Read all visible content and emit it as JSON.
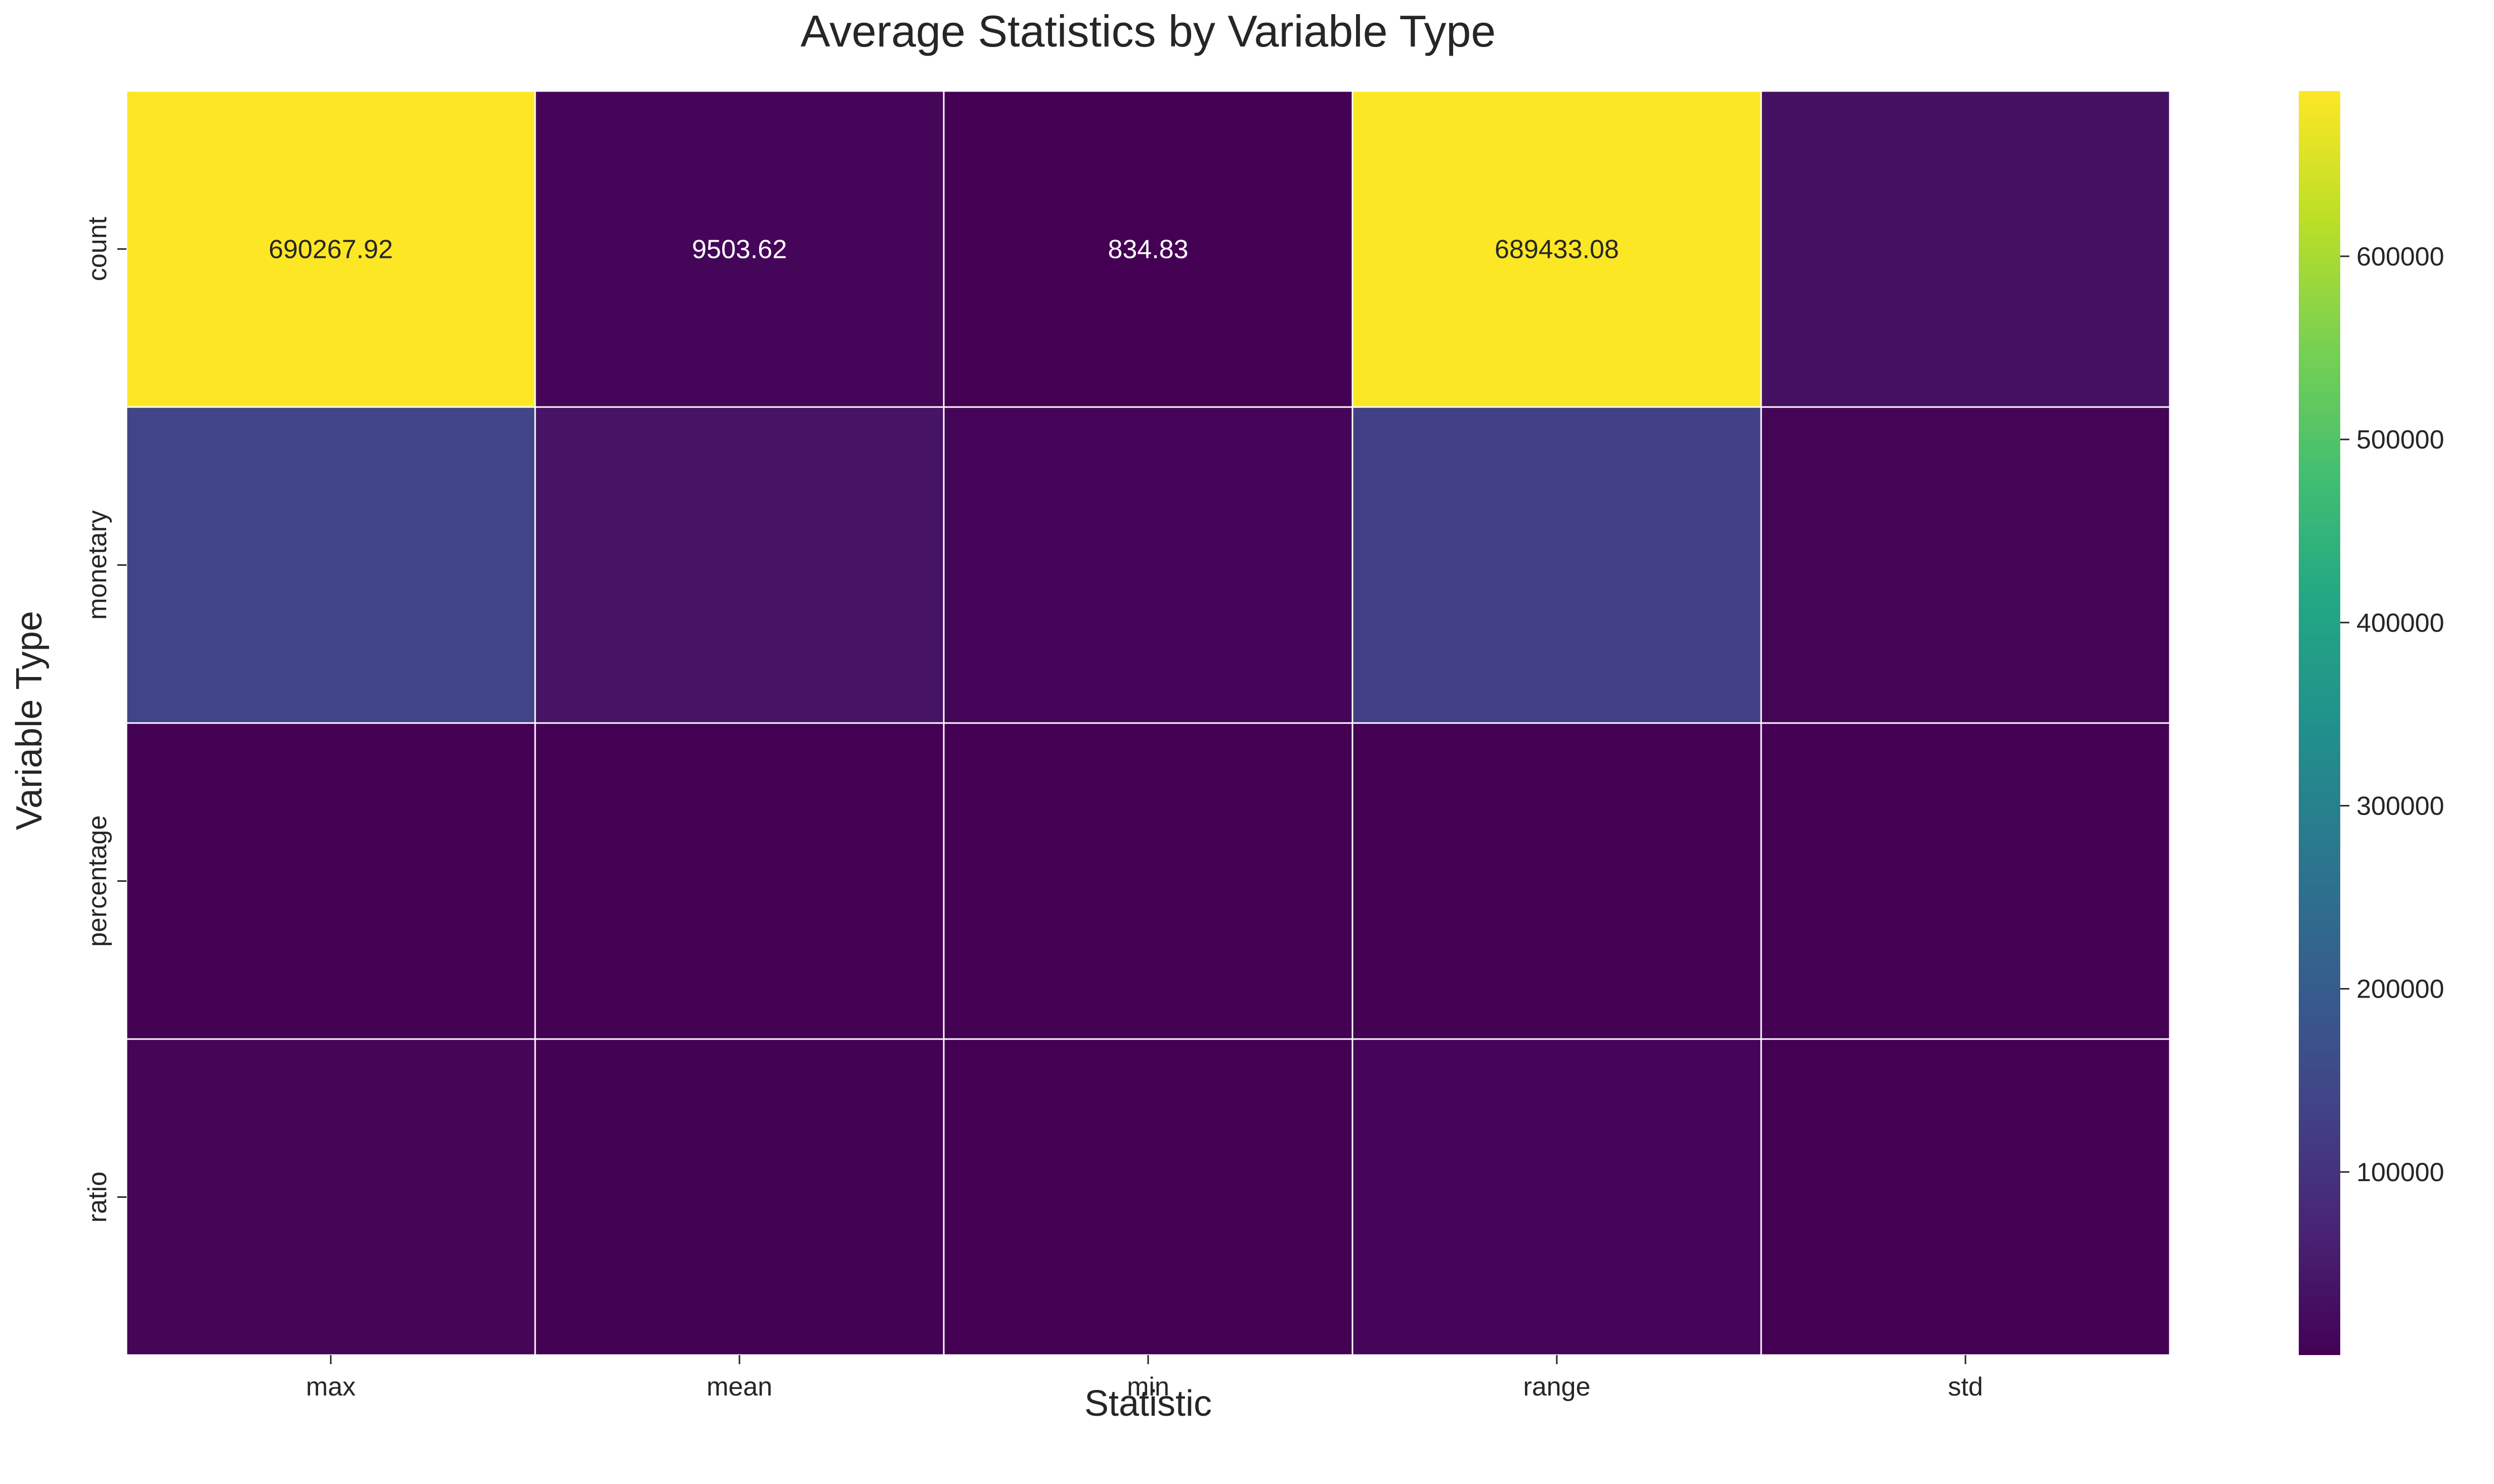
{
  "chart_data": {
    "type": "heatmap",
    "title": "Average Statistics by Variable Type",
    "xlabel": "Statistic",
    "ylabel": "Variable Type",
    "columns": [
      "max",
      "mean",
      "min",
      "range",
      "std"
    ],
    "rows": [
      "count",
      "monetary",
      "percentage",
      "ratio"
    ],
    "values": [
      [
        690267.92,
        9503.62,
        834.83,
        689433.08,
        30000
      ],
      [
        140000,
        35000,
        8000,
        130000,
        7000
      ],
      [
        150,
        45,
        5,
        145,
        20
      ],
      [
        9000,
        1200,
        300,
        8700,
        800
      ]
    ],
    "cell_labels": [
      [
        "690267.92",
        "9503.62",
        "834.83",
        "689433.08",
        ""
      ],
      [
        "",
        "",
        "",
        "",
        ""
      ],
      [
        "",
        "",
        "",
        "",
        ""
      ],
      [
        "",
        "",
        "",
        "",
        ""
      ]
    ],
    "colormap": "viridis",
    "value_range": [
      0,
      690267.92
    ],
    "colorbar": {
      "ticks": [
        100000,
        200000,
        300000,
        400000,
        500000,
        600000
      ],
      "tick_labels": [
        "100000",
        "200000",
        "300000",
        "400000",
        "500000",
        "600000"
      ]
    },
    "grid": false,
    "legend": "colorbar-right"
  }
}
